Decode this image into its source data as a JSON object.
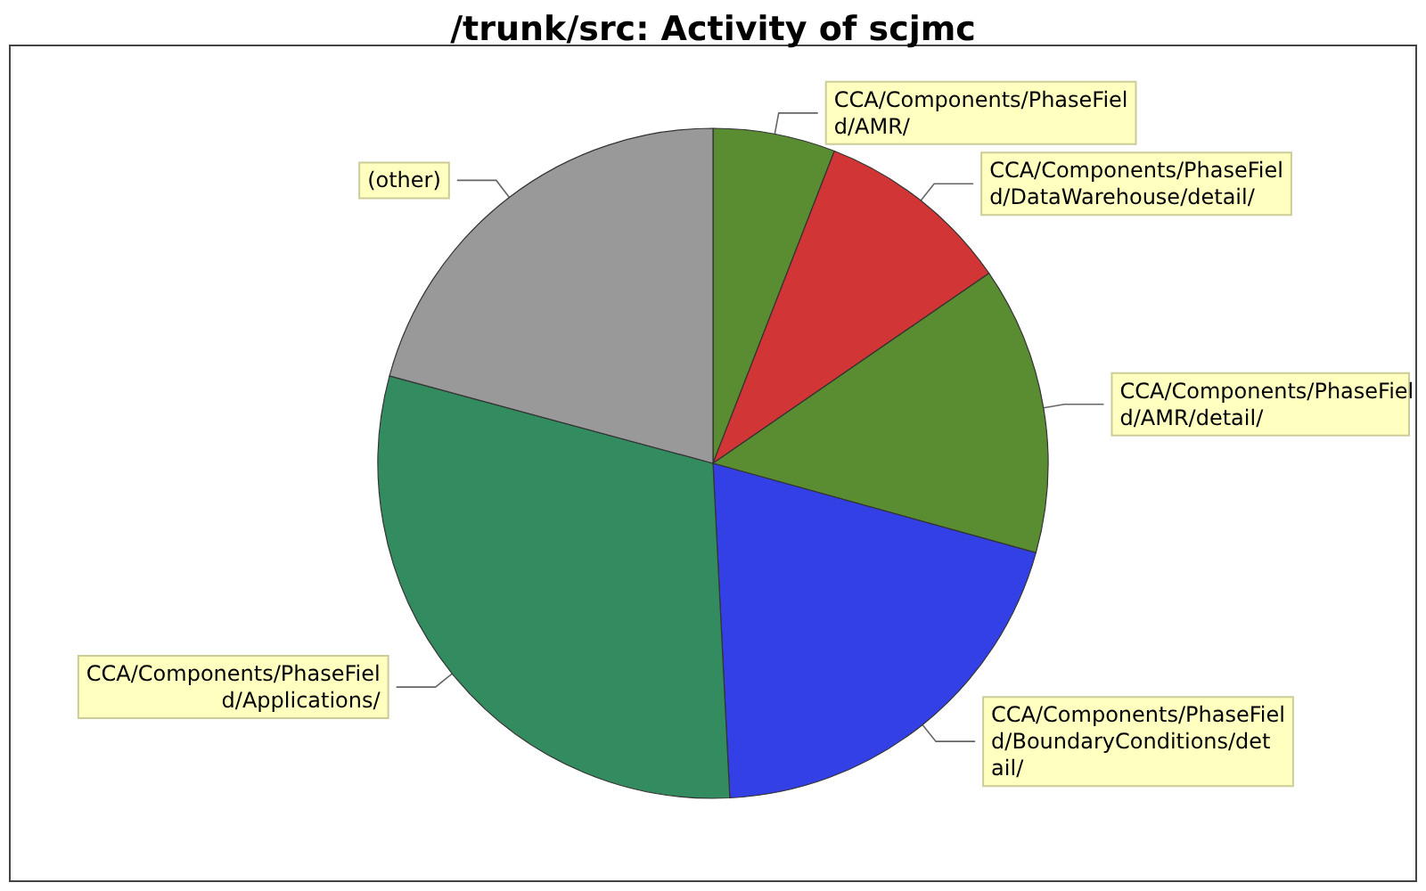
{
  "chart_data": {
    "type": "pie",
    "title": "/trunk/src: Activity of scjmc",
    "categories": [
      "CCA/Components/PhaseField/AMR/",
      "CCA/Components/PhaseField/DataWarehouse/detail/",
      "CCA/Components/PhaseField/AMR/detail/",
      "CCA/Components/PhaseField/BoundaryConditions/detail/",
      "CCA/Components/PhaseField/Applications/",
      "(other)"
    ],
    "values": [
      5.9,
      9.5,
      13.9,
      19.9,
      30,
      20.8
    ],
    "colors": [
      "#5a8c32",
      "#d13535",
      "#5a8c32",
      "#3340e6",
      "#338c5f",
      "#999999"
    ],
    "legend": false
  }
}
